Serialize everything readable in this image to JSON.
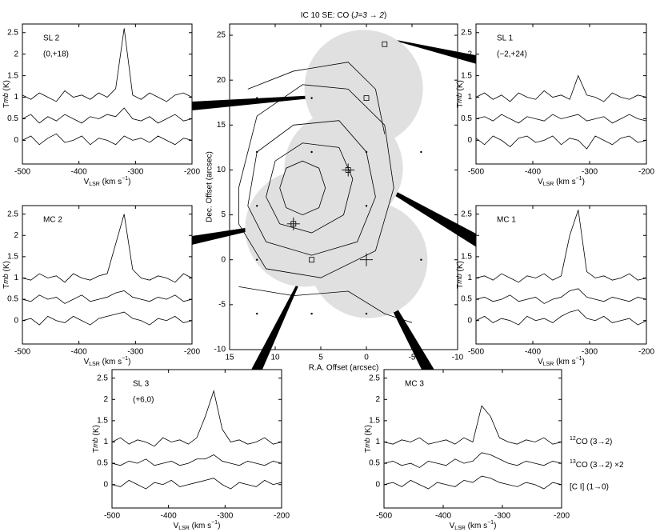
{
  "chart_data": [
    {
      "type": "contour",
      "title": [
        "IC 10 SE: CO (",
        "J=3 → 2",
        ")"
      ],
      "xlabel": "R.A. Offset (arcsec)",
      "ylabel": "Dec. Offset (arcsec)",
      "xlim": [
        15,
        -10
      ],
      "ylim": [
        -10,
        26.25
      ],
      "xticks": [
        15,
        10,
        5,
        0,
        -5,
        -10
      ],
      "yticks": [
        -10,
        -5,
        0,
        5,
        10,
        15,
        20,
        25
      ],
      "beams": {
        "color": "#e0e0e0",
        "x": [
          0.3,
          2.5,
          6.8,
          -0.2
        ],
        "y": [
          19.1,
          10.2,
          3.5,
          0
        ],
        "r": [
          6.5,
          6.5,
          6.5,
          6.5
        ]
      },
      "contours": [
        {
          "x": [
            9.5,
            8.8,
            7,
            5.2,
            4.5,
            5.2,
            7,
            8.8,
            9.5
          ],
          "values": [
            8,
            10.2,
            11,
            10.2,
            8,
            5.8,
            5,
            5.8,
            8
          ]
        },
        {
          "x": [
            11,
            10,
            7,
            3,
            1.5,
            2.5,
            6,
            9.5,
            11
          ],
          "values": [
            7,
            11,
            13,
            12.5,
            9,
            5,
            3,
            4,
            7
          ]
        },
        {
          "x": [
            13,
            12,
            8,
            3,
            0,
            -1,
            1,
            6,
            11,
            13
          ],
          "values": [
            6,
            12,
            15,
            15.5,
            12,
            7,
            2,
            0.5,
            2,
            6
          ]
        },
        {
          "x": [
            14,
            12,
            7,
            2,
            -2,
            -3,
            -1,
            5,
            11,
            14,
            14
          ],
          "values": [
            8,
            16,
            19.5,
            19,
            15,
            8,
            1,
            -2,
            -1,
            4,
            8
          ]
        },
        {
          "x": [
            14,
            8,
            2,
            -2,
            -5
          ],
          "values": [
            -3,
            -4,
            -3.5,
            -6,
            -7
          ]
        },
        {
          "x": [
            13,
            8,
            2,
            -1,
            -2
          ],
          "values": [
            19,
            21,
            22,
            19,
            14
          ]
        }
      ],
      "grid_points": {
        "x": [
          12,
          6,
          12,
          6,
          0,
          -6,
          12,
          0,
          12,
          -6,
          12,
          6,
          0
        ],
        "y": [
          18,
          18,
          12,
          12,
          12,
          12,
          6,
          6,
          0,
          0,
          -6,
          -6,
          -6
        ]
      },
      "squares": {
        "x": [
          0,
          -2,
          6,
          8,
          2
        ],
        "y": [
          18,
          24,
          0,
          4,
          10
        ]
      },
      "crosses": {
        "x": [
          0,
          2,
          8
        ],
        "y": [
          0,
          10,
          4
        ]
      }
    },
    {
      "type": "spectrum",
      "label": "SL 2",
      "position": "(0,+18)",
      "xlabel": [
        "V",
        "LSR",
        " (km s",
        "−1",
        ")"
      ],
      "ylabel": [
        "T",
        "mb",
        " (K)"
      ],
      "xlim": [
        -500,
        -200
      ],
      "ylim": [
        -0.55,
        2.7
      ],
      "xticks": [
        -500,
        -400,
        -300,
        -200
      ],
      "yticks": [
        0,
        0.5,
        1,
        1.5,
        2,
        2.5
      ],
      "x": [
        -500,
        -485,
        -470,
        -455,
        -440,
        -425,
        -410,
        -395,
        -380,
        -365,
        -350,
        -335,
        -320,
        -305,
        -290,
        -275,
        -260,
        -245,
        -230,
        -215,
        -200
      ],
      "series": [
        {
          "color": "#000000",
          "values": [
            1.05,
            0.95,
            1.1,
            1.0,
            0.9,
            1.15,
            1.0,
            1.05,
            0.95,
            1.1,
            1.0,
            1.2,
            2.6,
            1.05,
            0.95,
            1.1,
            1.0,
            0.9,
            1.05,
            1.1,
            1.0
          ]
        },
        {
          "color": "#000000",
          "values": [
            0.5,
            0.6,
            0.4,
            0.55,
            0.45,
            0.6,
            0.5,
            0.4,
            0.55,
            0.5,
            0.6,
            0.55,
            0.75,
            0.5,
            0.45,
            0.55,
            0.4,
            0.5,
            0.6,
            0.45,
            0.5
          ]
        },
        {
          "color": "#000000",
          "values": [
            0.0,
            0.1,
            -0.1,
            0.05,
            0.15,
            -0.05,
            0.0,
            0.1,
            -0.1,
            0.05,
            0.0,
            -0.1,
            0.1,
            0.0,
            0.05,
            -0.05,
            0.1,
            0.0,
            -0.1,
            0.05,
            0.0
          ]
        }
      ]
    },
    {
      "type": "spectrum",
      "label": "SL 1",
      "position": "(−2,+24)",
      "xlabel": [
        "V",
        "LSR",
        " (km s",
        "−1",
        ")"
      ],
      "ylabel": [
        "T",
        "mb",
        " (K)"
      ],
      "xlim": [
        -500,
        -200
      ],
      "ylim": [
        -0.55,
        2.7
      ],
      "xticks": [
        -500,
        -400,
        -300,
        -200
      ],
      "yticks": [
        0,
        0.5,
        1,
        1.5,
        2,
        2.5
      ],
      "x": [
        -500,
        -485,
        -470,
        -455,
        -440,
        -425,
        -410,
        -395,
        -380,
        -365,
        -350,
        -335,
        -320,
        -305,
        -290,
        -275,
        -260,
        -245,
        -230,
        -215,
        -200
      ],
      "series": [
        {
          "color": "#000000",
          "values": [
            1.0,
            1.1,
            0.95,
            1.05,
            0.9,
            1.1,
            1.0,
            0.95,
            1.15,
            1.0,
            1.05,
            0.95,
            1.5,
            1.05,
            1.0,
            0.9,
            1.1,
            1.0,
            0.95,
            1.05,
            1.0
          ]
        },
        {
          "color": "#000000",
          "values": [
            0.5,
            0.55,
            0.45,
            0.6,
            0.5,
            0.4,
            0.55,
            0.5,
            0.45,
            0.6,
            0.5,
            0.55,
            0.6,
            0.45,
            0.5,
            0.55,
            0.4,
            0.5,
            0.6,
            0.5,
            0.45
          ]
        },
        {
          "color": "#000000",
          "values": [
            0.05,
            -0.1,
            0.1,
            0.0,
            -0.15,
            0.05,
            0.1,
            -0.05,
            0.0,
            0.1,
            -0.1,
            0.05,
            0.0,
            -0.2,
            0.1,
            0.0,
            -0.1,
            0.05,
            0.1,
            -0.05,
            0.0
          ]
        }
      ]
    },
    {
      "type": "spectrum",
      "label": "MC 2",
      "xlabel": [
        "V",
        "LSR",
        " (km s",
        "−1",
        ")"
      ],
      "ylabel": [
        "T",
        "mb",
        " (K)"
      ],
      "xlim": [
        -500,
        -200
      ],
      "ylim": [
        -0.55,
        2.7
      ],
      "xticks": [
        -500,
        -400,
        -300,
        -200
      ],
      "yticks": [
        0,
        0.5,
        1,
        1.5,
        2,
        2.5
      ],
      "x": [
        -500,
        -485,
        -470,
        -455,
        -440,
        -425,
        -410,
        -395,
        -380,
        -365,
        -350,
        -335,
        -320,
        -305,
        -290,
        -275,
        -260,
        -245,
        -230,
        -215,
        -200
      ],
      "series": [
        {
          "color": "#000000",
          "values": [
            1.0,
            0.95,
            1.1,
            1.0,
            1.05,
            0.9,
            1.1,
            1.0,
            0.95,
            1.05,
            1.1,
            1.8,
            2.5,
            1.2,
            1.0,
            0.95,
            1.05,
            1.0,
            0.9,
            1.1,
            1.0
          ]
        },
        {
          "color": "#000000",
          "values": [
            0.5,
            0.45,
            0.6,
            0.5,
            0.55,
            0.4,
            0.5,
            0.6,
            0.45,
            0.5,
            0.55,
            0.65,
            0.7,
            0.55,
            0.5,
            0.45,
            0.55,
            0.5,
            0.6,
            0.45,
            0.5
          ]
        },
        {
          "color": "#000000",
          "values": [
            0.0,
            0.05,
            -0.1,
            0.1,
            0.0,
            -0.05,
            0.1,
            0.0,
            -0.1,
            0.05,
            0.1,
            0.15,
            0.2,
            0.05,
            0.0,
            -0.1,
            0.05,
            0.0,
            0.1,
            -0.05,
            0.0
          ]
        }
      ]
    },
    {
      "type": "spectrum",
      "label": "MC 1",
      "xlabel": [
        "V",
        "LSR",
        " (km s",
        "−1",
        ")"
      ],
      "ylabel": [
        "T",
        "mb",
        " (K)"
      ],
      "xlim": [
        -500,
        -200
      ],
      "ylim": [
        -0.55,
        2.7
      ],
      "xticks": [
        -500,
        -400,
        -300,
        -200
      ],
      "yticks": [
        0,
        0.5,
        1,
        1.5,
        2,
        2.5
      ],
      "x": [
        -500,
        -485,
        -470,
        -455,
        -440,
        -425,
        -410,
        -395,
        -380,
        -365,
        -350,
        -335,
        -320,
        -305,
        -290,
        -275,
        -260,
        -245,
        -230,
        -215,
        -200
      ],
      "series": [
        {
          "color": "#000000",
          "values": [
            1.0,
            1.05,
            0.95,
            1.1,
            1.0,
            0.9,
            1.05,
            1.0,
            1.1,
            0.95,
            1.05,
            2.0,
            2.6,
            1.15,
            1.0,
            1.05,
            0.95,
            1.0,
            1.1,
            0.95,
            1.0
          ]
        },
        {
          "color": "#000000",
          "values": [
            0.5,
            0.55,
            0.45,
            0.5,
            0.6,
            0.45,
            0.5,
            0.55,
            0.4,
            0.5,
            0.55,
            0.7,
            0.75,
            0.55,
            0.5,
            0.45,
            0.55,
            0.5,
            0.45,
            0.55,
            0.5
          ]
        },
        {
          "color": "#000000",
          "values": [
            0.0,
            0.1,
            -0.05,
            0.05,
            0.0,
            -0.1,
            0.1,
            0.0,
            0.05,
            -0.05,
            0.1,
            0.2,
            0.25,
            0.05,
            0.0,
            0.1,
            -0.05,
            0.0,
            0.05,
            -0.1,
            0.0
          ]
        }
      ]
    },
    {
      "type": "spectrum",
      "label": "SL 3",
      "position": "(+6,0)",
      "xlabel": [
        "V",
        "LSR",
        " (km s",
        "−1",
        ")"
      ],
      "ylabel": [
        "T",
        "mb",
        " (K)"
      ],
      "xlim": [
        -500,
        -200
      ],
      "ylim": [
        -0.55,
        2.7
      ],
      "xticks": [
        -500,
        -400,
        -300,
        -200
      ],
      "yticks": [
        0,
        0.5,
        1,
        1.5,
        2,
        2.5
      ],
      "x": [
        -500,
        -485,
        -470,
        -455,
        -440,
        -425,
        -410,
        -395,
        -380,
        -365,
        -350,
        -335,
        -320,
        -305,
        -290,
        -275,
        -260,
        -245,
        -230,
        -215,
        -200
      ],
      "series": [
        {
          "color": "#000000",
          "values": [
            1.0,
            1.1,
            0.95,
            1.05,
            1.0,
            0.9,
            1.1,
            1.0,
            1.05,
            0.95,
            1.1,
            1.6,
            2.2,
            1.3,
            1.0,
            1.05,
            0.95,
            1.0,
            1.1,
            0.95,
            1.0
          ]
        },
        {
          "color": "#000000",
          "values": [
            0.5,
            0.45,
            0.55,
            0.5,
            0.6,
            0.45,
            0.5,
            0.55,
            0.45,
            0.5,
            0.6,
            0.6,
            0.7,
            0.55,
            0.5,
            0.45,
            0.55,
            0.5,
            0.45,
            0.55,
            0.5
          ]
        },
        {
          "color": "#000000",
          "values": [
            0.0,
            -0.05,
            0.1,
            0.0,
            -0.1,
            0.05,
            0.0,
            0.1,
            -0.05,
            0.0,
            0.05,
            0.1,
            0.15,
            0.0,
            -0.1,
            0.05,
            0.0,
            -0.05,
            0.1,
            0.0,
            0.05
          ]
        }
      ]
    },
    {
      "type": "spectrum",
      "label": "MC 3",
      "xlabel": [
        "V",
        "LSR",
        " (km s",
        "−1",
        ")"
      ],
      "ylabel": [
        "T",
        "mb",
        " (K)"
      ],
      "xlim": [
        -500,
        -200
      ],
      "ylim": [
        -0.55,
        2.7
      ],
      "xticks": [
        -500,
        -400,
        -300,
        -200
      ],
      "yticks": [
        0,
        0.5,
        1,
        1.5,
        2,
        2.5
      ],
      "x": [
        -500,
        -485,
        -470,
        -455,
        -440,
        -425,
        -410,
        -395,
        -380,
        -365,
        -350,
        -335,
        -320,
        -305,
        -290,
        -275,
        -260,
        -245,
        -230,
        -215,
        -200
      ],
      "series": [
        {
          "name": "12CO (3→2)",
          "color": "#000000",
          "values": [
            1.0,
            0.95,
            1.05,
            1.0,
            1.1,
            0.95,
            1.0,
            1.05,
            0.95,
            1.1,
            1.0,
            1.85,
            1.6,
            1.1,
            1.0,
            0.95,
            1.05,
            1.0,
            1.1,
            0.95,
            1.0
          ]
        },
        {
          "name": "13CO (3→2) ×2",
          "color": "#000000",
          "values": [
            0.5,
            0.55,
            0.45,
            0.5,
            0.4,
            0.55,
            0.5,
            0.45,
            0.6,
            0.5,
            0.55,
            0.75,
            0.7,
            0.6,
            0.5,
            0.45,
            0.55,
            0.5,
            0.45,
            0.55,
            0.5
          ]
        },
        {
          "name": "[C I] (1→0)",
          "color": "#000000",
          "values": [
            0.0,
            0.05,
            -0.05,
            0.1,
            0.0,
            -0.1,
            0.05,
            0.0,
            -0.05,
            0.1,
            0.05,
            0.2,
            0.15,
            0.05,
            0.0,
            -0.05,
            0.05,
            0.0,
            -0.1,
            0.05,
            0.0
          ]
        }
      ]
    }
  ]
}
